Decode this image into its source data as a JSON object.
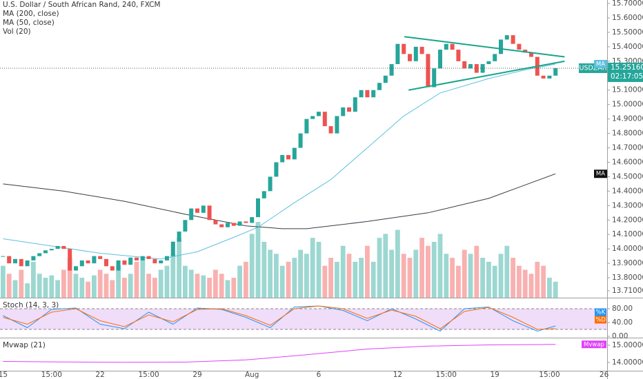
{
  "chart_data": [
    {
      "type": "candlestick",
      "title": "U.S. Dollar / South African Rand, 240, FXCM",
      "symbol": "USDZAR",
      "last_label": {
        "value": 15.2516,
        "label": "15.25160"
      },
      "countdown": "02:17:05",
      "up_color": "#26a69a",
      "down_color": "#ef5350",
      "volume_name": "Vol (20)",
      "categories": [
        "15",
        null,
        null,
        null,
        null,
        null,
        null,
        null,
        "15:00",
        null,
        null,
        null,
        null,
        null,
        null,
        null,
        "22",
        null,
        null,
        null,
        null,
        null,
        null,
        null,
        "15:00",
        null,
        null,
        null,
        null,
        null,
        null,
        null,
        "29",
        null,
        null,
        null,
        null,
        null,
        null,
        null,
        null,
        "Aug",
        null,
        null,
        null,
        null,
        null,
        null,
        null,
        null,
        null,
        null,
        "6",
        null,
        null,
        null,
        null,
        null,
        null,
        null,
        null,
        null,
        null,
        null,
        null,
        "12",
        null,
        null,
        null,
        null,
        null,
        null,
        null,
        "15:00",
        null,
        null,
        null,
        null,
        null,
        null,
        null,
        "19",
        null,
        null,
        null,
        null,
        null,
        null,
        null,
        null,
        "15:00",
        null,
        null,
        null,
        null,
        null,
        null,
        null,
        null,
        "26"
      ],
      "close": [
        13.95,
        13.9,
        13.93,
        13.88,
        13.92,
        13.95,
        13.97,
        13.99,
        14.0,
        14.02,
        14.0,
        13.85,
        13.88,
        13.92,
        13.9,
        13.95,
        13.93,
        13.88,
        13.85,
        13.92,
        13.89,
        13.94,
        13.92,
        13.95,
        13.93,
        13.9,
        13.92,
        13.95,
        14.05,
        14.12,
        14.2,
        14.28,
        14.25,
        14.3,
        14.2,
        14.17,
        14.15,
        14.18,
        14.16,
        14.19,
        14.18,
        14.22,
        14.35,
        14.4,
        14.5,
        14.6,
        14.65,
        14.62,
        14.7,
        14.8,
        14.9,
        14.92,
        14.95,
        14.85,
        14.8,
        14.92,
        14.98,
        14.95,
        15.05,
        15.1,
        15.05,
        15.1,
        15.15,
        15.2,
        15.28,
        15.42,
        15.35,
        15.3,
        15.4,
        15.35,
        15.12,
        15.25,
        15.38,
        15.42,
        15.38,
        15.3,
        15.25,
        15.28,
        15.22,
        15.28,
        15.3,
        15.35,
        15.45,
        15.48,
        15.42,
        15.38,
        15.36,
        15.33,
        15.2,
        15.18,
        15.2,
        15.2516,
        null,
        null,
        null,
        null,
        null,
        null,
        null,
        null
      ],
      "volume": [
        40,
        30,
        22,
        35,
        18,
        45,
        30,
        25,
        28,
        22,
        35,
        50,
        30,
        25,
        20,
        28,
        35,
        30,
        22,
        40,
        25,
        30,
        45,
        50,
        30,
        25,
        35,
        40,
        55,
        75,
        40,
        35,
        30,
        28,
        25,
        35,
        30,
        22,
        25,
        40,
        45,
        80,
        95,
        70,
        60,
        55,
        40,
        45,
        50,
        60,
        55,
        75,
        70,
        40,
        50,
        45,
        65,
        55,
        45,
        50,
        65,
        45,
        75,
        80,
        60,
        85,
        55,
        50,
        60,
        75,
        65,
        70,
        80,
        55,
        50,
        40,
        60,
        55,
        65,
        50,
        45,
        40,
        55,
        65,
        50,
        40,
        35,
        30,
        45,
        40,
        25,
        20,
        null,
        null,
        null,
        null,
        null,
        null,
        null,
        null
      ],
      "series": [
        {
          "name": "MA (200, close)",
          "tag": "MA",
          "color": "#363a45",
          "x": [
            0,
            10,
            20,
            30,
            40,
            46,
            50,
            60,
            70,
            80,
            91
          ],
          "values": [
            14.45,
            14.4,
            14.33,
            14.24,
            14.16,
            14.14,
            14.14,
            14.19,
            14.25,
            14.35,
            14.52
          ]
        },
        {
          "name": "MA (50, close)",
          "tag": "MA",
          "color": "#5bc0de",
          "x": [
            0,
            8,
            16,
            26,
            32,
            38,
            42,
            48,
            54,
            60,
            66,
            72,
            80,
            86,
            91
          ],
          "values": [
            14.07,
            14.02,
            13.97,
            13.93,
            13.98,
            14.08,
            14.15,
            14.32,
            14.48,
            14.7,
            14.92,
            15.08,
            15.18,
            15.24,
            15.28
          ]
        }
      ],
      "trendlines": [
        {
          "x": [
            66.1,
            92.5
          ],
          "values": [
            15.47,
            15.33
          ]
        },
        {
          "x": [
            66.8,
            92.5
          ],
          "values": [
            15.1,
            15.3
          ]
        }
      ],
      "trendline_color": "#17a589",
      "ylim": [
        13.662,
        15.724
      ],
      "yticks": [
        {
          "value": 13.71,
          "label": "13.71000"
        },
        {
          "value": 13.8,
          "label": "13.80000"
        },
        {
          "value": 13.9,
          "label": "13.90000"
        },
        {
          "value": 14.0,
          "label": "14.00000"
        },
        {
          "value": 14.1,
          "label": "14.10000"
        },
        {
          "value": 14.2,
          "label": "14.20000"
        },
        {
          "value": 14.3,
          "label": "14.30000"
        },
        {
          "value": 14.4,
          "label": "14.40000"
        },
        {
          "value": 14.5,
          "label": "14.50000"
        },
        {
          "value": 14.6,
          "label": "14.60000"
        },
        {
          "value": 14.7,
          "label": "14.70000"
        },
        {
          "value": 14.8,
          "label": "14.80000"
        },
        {
          "value": 14.9,
          "label": "14.90000"
        },
        {
          "value": 15.0,
          "label": "15.00000"
        },
        {
          "value": 15.1,
          "label": "15.10000"
        },
        {
          "value": 15.2,
          "label": "15.20000"
        },
        {
          "value": 15.3,
          "label": "15.30000"
        },
        {
          "value": 15.4,
          "label": "15.40000"
        },
        {
          "value": 15.5,
          "label": "15.50000"
        },
        {
          "value": 15.6,
          "label": "15.60000"
        },
        {
          "value": 15.7,
          "label": "15.70000"
        }
      ]
    },
    {
      "type": "line",
      "title": "Stoch (14, 3, 3)",
      "band": [
        20,
        80
      ],
      "band_color": "#e6c7f5",
      "series": [
        {
          "name": "%K",
          "color": "#2196f3",
          "x": [
            0,
            4,
            8,
            12,
            16,
            20,
            24,
            28,
            32,
            36,
            40,
            44,
            48,
            52,
            56,
            60,
            64,
            68,
            72,
            76,
            80,
            84,
            88,
            91
          ],
          "values": [
            60,
            25,
            78,
            82,
            35,
            22,
            70,
            35,
            82,
            78,
            55,
            25,
            85,
            88,
            75,
            45,
            80,
            50,
            15,
            80,
            85,
            45,
            15,
            30
          ]
        },
        {
          "name": "%D",
          "color": "#ff6d00",
          "x": [
            0,
            4,
            8,
            12,
            16,
            20,
            24,
            28,
            32,
            36,
            40,
            44,
            48,
            52,
            56,
            60,
            64,
            68,
            72,
            76,
            80,
            84,
            88,
            91
          ],
          "values": [
            55,
            35,
            70,
            80,
            45,
            28,
            62,
            42,
            78,
            80,
            60,
            32,
            80,
            88,
            80,
            52,
            76,
            58,
            22,
            72,
            84,
            55,
            20,
            22
          ]
        }
      ],
      "ylim": [
        -4,
        110
      ],
      "yticks": [
        {
          "value": 80,
          "label": "80.00"
        },
        {
          "value": 40,
          "label": "40.00"
        },
        {
          "value": 0,
          "label": "0.00"
        }
      ]
    },
    {
      "type": "line",
      "title": "Mvwap (21)",
      "series": [
        {
          "name": "Mvwap",
          "color": "#e040fb",
          "x": [
            0,
            10,
            20,
            30,
            40,
            50,
            60,
            70,
            80,
            91
          ],
          "values": [
            14.06,
            14.03,
            14.01,
            14.02,
            14.15,
            14.45,
            14.78,
            14.95,
            15.02,
            15.05
          ]
        }
      ],
      "ylim": [
        13.52,
        15.4
      ],
      "yticks": [
        {
          "value": 15,
          "label": "15.00000"
        },
        {
          "value": 14,
          "label": "14.00000"
        }
      ]
    }
  ]
}
